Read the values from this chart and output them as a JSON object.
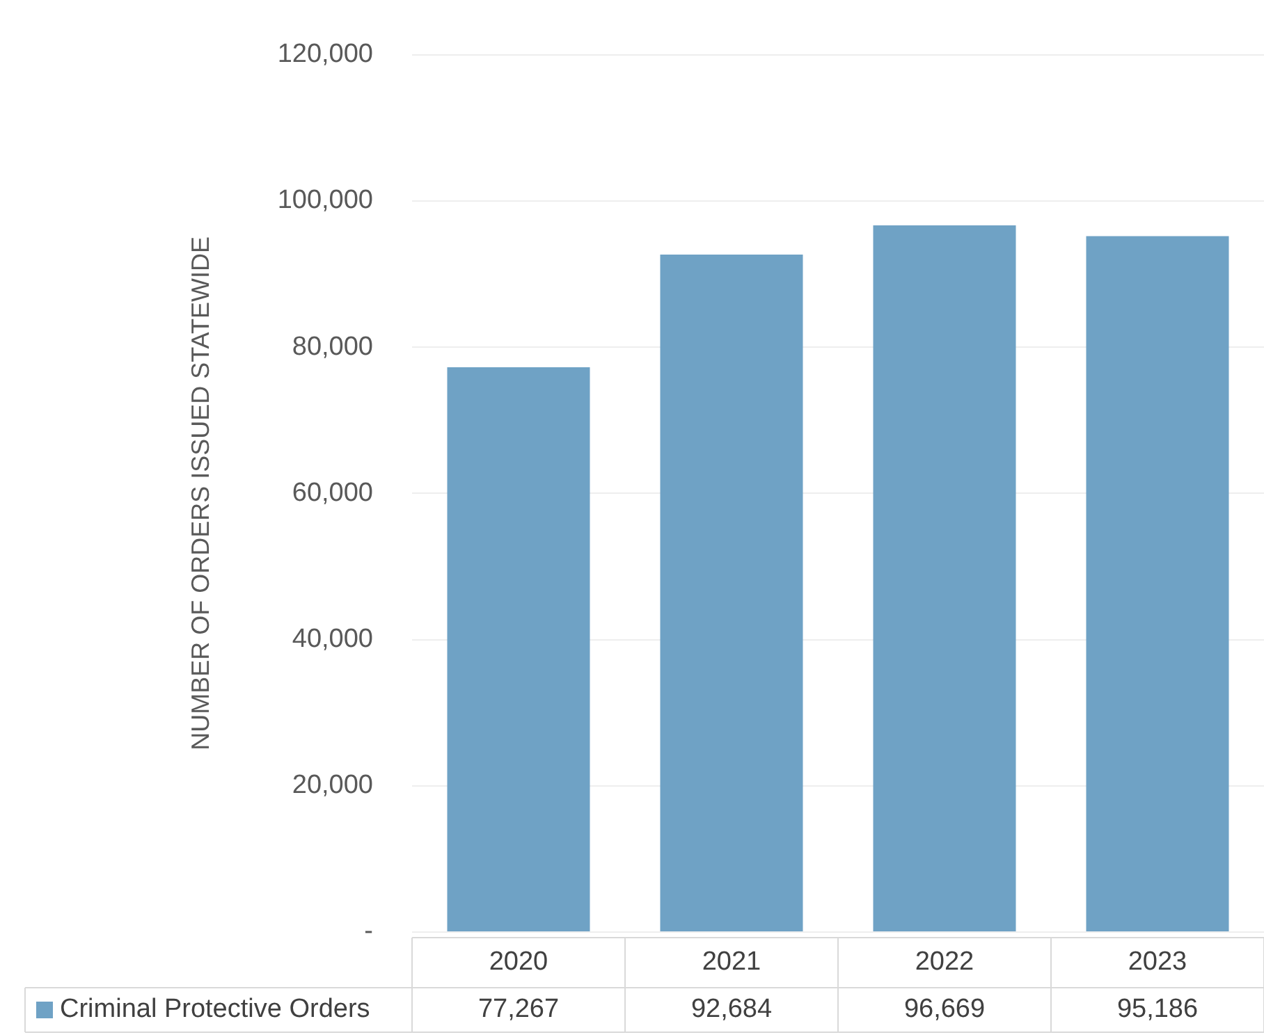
{
  "chart_data": {
    "type": "bar",
    "ylabel": "NUMBER OF ORDERS ISSUED STATEWIDE",
    "categories": [
      "2020",
      "2021",
      "2022",
      "2023"
    ],
    "series": [
      {
        "name": "Criminal Protective Orders",
        "color": "#6fa2c5",
        "values": [
          77267,
          92684,
          96669,
          95186
        ],
        "value_labels": [
          "77,267",
          "92,684",
          "96,669",
          "95,186"
        ]
      }
    ],
    "ylim": [
      0,
      120000
    ],
    "yticks": [
      {
        "value": 0,
        "label": "-"
      },
      {
        "value": 20000,
        "label": "20,000"
      },
      {
        "value": 40000,
        "label": "40,000"
      },
      {
        "value": 60000,
        "label": "60,000"
      },
      {
        "value": 80000,
        "label": "80,000"
      },
      {
        "value": 100000,
        "label": "100,000"
      },
      {
        "value": 120000,
        "label": "120,000"
      }
    ],
    "grid": "y",
    "legend": "bottom"
  }
}
